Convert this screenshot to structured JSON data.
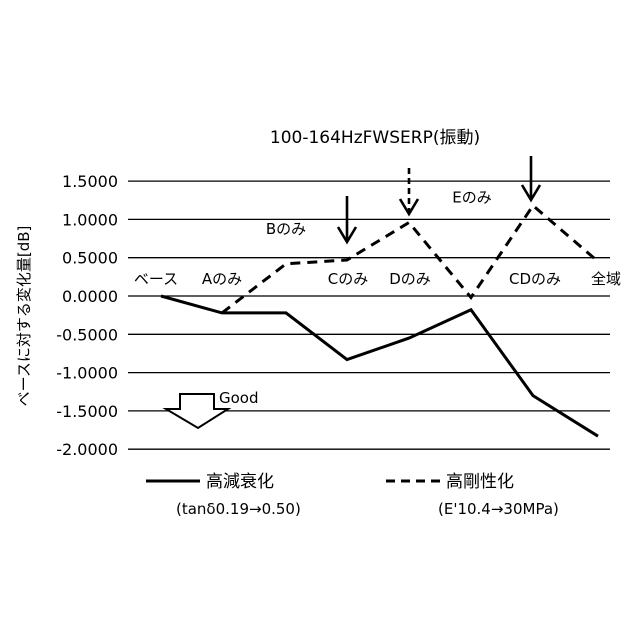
{
  "chart_data": {
    "type": "line",
    "title": "100-164HzFWSERP(振動)",
    "ylabel": "ベースに対する変化量[dB]",
    "ylim": [
      -2.0,
      1.5
    ],
    "yticks": [
      "1.5000",
      "1.0000",
      "0.5000",
      "0.0000",
      "-0.5000",
      "-1.0000",
      "-1.5000",
      "-2.0000"
    ],
    "ytick_values": [
      1.5,
      1.0,
      0.5,
      0.0,
      -0.5,
      -1.0,
      -1.5,
      -2.0
    ],
    "grid": "horizontal",
    "categories": [
      "ベース",
      "Aのみ",
      "Bのみ",
      "Cのみ",
      "Dのみ",
      "Eのみ",
      "CDのみ",
      "全域"
    ],
    "series": [
      {
        "name": "高減衰化",
        "sub": "(tanδ0.19→0.50)",
        "style": "solid",
        "values": [
          0.0,
          -0.22,
          -0.22,
          -0.83,
          -0.55,
          -0.18,
          -1.3,
          -1.83
        ]
      },
      {
        "name": "高剛性化",
        "sub": "(E'10.4→30MPa)",
        "style": "dashed",
        "values": [
          null,
          -0.22,
          0.42,
          0.47,
          0.96,
          -0.02,
          1.18,
          0.45
        ]
      }
    ],
    "legend_position": "bottom",
    "annotations": {
      "good": "Good"
    }
  }
}
